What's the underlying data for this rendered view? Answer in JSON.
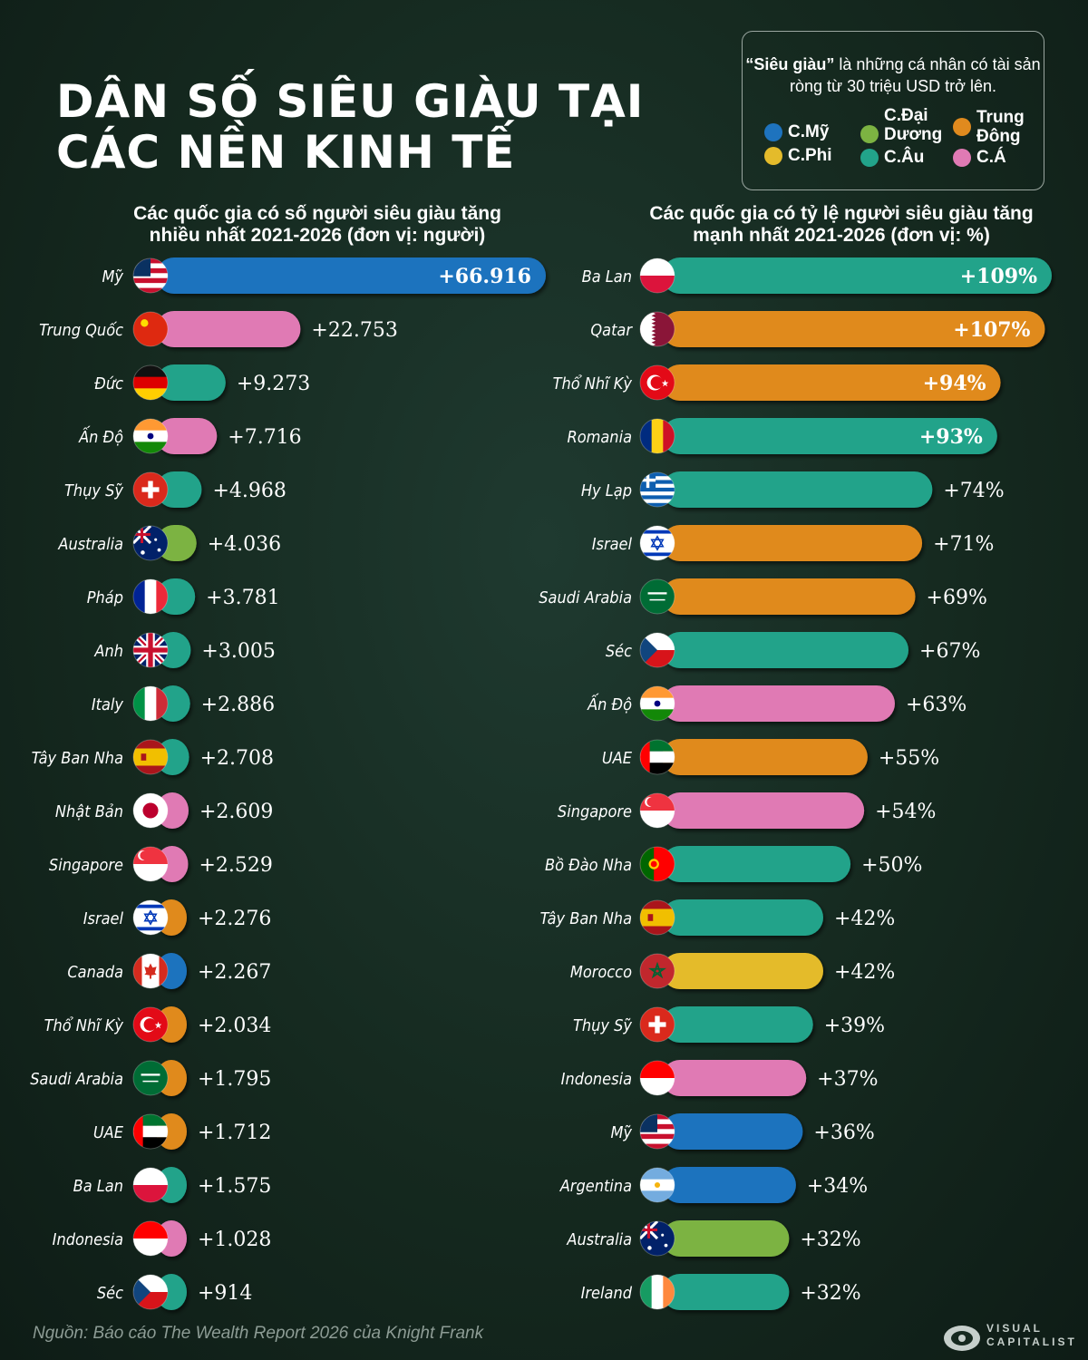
{
  "title": "DÂN SỐ SIÊU GIÀU TẠI\nCÁC NỀN KINH TẾ",
  "legend": {
    "note_bold": "“Siêu giàu”",
    "note_text": " là những cá nhân có tài sản ròng từ 30 triệu USD trở lên.",
    "items": [
      {
        "label": "C.Mỹ",
        "color": "#1e73be"
      },
      {
        "label": "C.Đại\nDương",
        "color": "#7cb342"
      },
      {
        "label": "Trung\nĐông",
        "color": "#e08a1e"
      },
      {
        "label": "C.Phi",
        "color": "#e4bb2b"
      },
      {
        "label": "C.Âu",
        "color": "#22a38a"
      },
      {
        "label": "C.Á",
        "color": "#e07ab4"
      }
    ]
  },
  "source": "Nguồn: Báo cáo The Wealth Report 2026 của Knight Frank",
  "brand": {
    "line1": "VISUAL",
    "line2": "CAPITALIST"
  },
  "chart_data": [
    {
      "type": "bar",
      "orientation": "horizontal",
      "title": "Các quốc gia có số người siêu giàu tăng nhiều nhất 2021-2026 (đơn vị: người)",
      "categories": [
        "Mỹ",
        "Trung Quốc",
        "Đức",
        "Ấn Độ",
        "Thụy Sỹ",
        "Australia",
        "Pháp",
        "Anh",
        "Italy",
        "Tây Ban Nha",
        "Nhật Bản",
        "Singapore",
        "Israel",
        "Canada",
        "Thổ Nhĩ Kỳ",
        "Saudi Arabia",
        "UAE",
        "Ba Lan",
        "Indonesia",
        "Séc"
      ],
      "values": [
        66916,
        22753,
        9273,
        7716,
        4968,
        4036,
        3781,
        3005,
        2886,
        2708,
        2609,
        2529,
        2276,
        2267,
        2034,
        1795,
        1712,
        1575,
        1028,
        914
      ],
      "labels": [
        "+66.916",
        "+22.753",
        "+9.273",
        "+7.716",
        "+4.968",
        "+4.036",
        "+3.781",
        "+3.005",
        "+2.886",
        "+2.708",
        "+2.609",
        "+2.529",
        "+2.276",
        "+2.267",
        "+2.034",
        "+1.795",
        "+1.712",
        "+1.575",
        "+1.028",
        "+914"
      ],
      "regions": [
        "am",
        "as",
        "eu",
        "as",
        "eu",
        "oc",
        "eu",
        "eu",
        "eu",
        "eu",
        "as",
        "as",
        "me",
        "am",
        "me",
        "me",
        "me",
        "eu",
        "as",
        "eu"
      ],
      "flags": [
        "us-flag",
        "cn-flag",
        "de-flag",
        "in-flag",
        "ch-flag",
        "au-flag",
        "fr-flag",
        "gb-flag",
        "it-flag",
        "es-flag",
        "jp-flag",
        "sg-flag",
        "il-flag",
        "ca-flag",
        "tr-flag",
        "sa-flag",
        "ae-flag",
        "pl-flag",
        "id-flag",
        "cz-flag"
      ],
      "xlim": [
        0,
        66916
      ]
    },
    {
      "type": "bar",
      "orientation": "horizontal",
      "title": "Các quốc gia có tỷ lệ người siêu giàu tăng mạnh nhất 2021-2026 (đơn vị: %)",
      "categories": [
        "Ba Lan",
        "Qatar",
        "Thổ Nhĩ Kỳ",
        "Romania",
        "Hy Lạp",
        "Israel",
        "Saudi Arabia",
        "Séc",
        "Ấn Độ",
        "UAE",
        "Singapore",
        "Bồ Đào Nha",
        "Tây Ban Nha",
        "Morocco",
        "Thụy Sỹ",
        "Indonesia",
        "Mỹ",
        "Argentina",
        "Australia",
        "Ireland"
      ],
      "values": [
        109,
        107,
        94,
        93,
        74,
        71,
        69,
        67,
        63,
        55,
        54,
        50,
        42,
        42,
        39,
        37,
        36,
        34,
        32,
        32
      ],
      "labels": [
        "+109%",
        "+107%",
        "+94%",
        "+93%",
        "+74%",
        "+71%",
        "+69%",
        "+67%",
        "+63%",
        "+55%",
        "+54%",
        "+50%",
        "+42%",
        "+42%",
        "+39%",
        "+37%",
        "+36%",
        "+34%",
        "+32%",
        "+32%"
      ],
      "regions": [
        "eu",
        "me",
        "me",
        "eu",
        "eu",
        "me",
        "me",
        "eu",
        "as",
        "me",
        "as",
        "eu",
        "eu",
        "af",
        "eu",
        "as",
        "am",
        "am",
        "oc",
        "eu"
      ],
      "flags": [
        "pl-flag",
        "qa-flag",
        "tr-flag",
        "ro-flag",
        "gr-flag",
        "il-flag",
        "sa-flag",
        "cz-flag",
        "in-flag",
        "ae-flag",
        "sg-flag",
        "pt-flag",
        "es-flag",
        "ma-flag",
        "ch-flag",
        "id-flag",
        "us-flag",
        "ar-flag",
        "au-flag",
        "ie-flag"
      ],
      "xlim": [
        0,
        109
      ]
    }
  ],
  "region_colors": {
    "am": "#1e73be",
    "oc": "#7cb342",
    "me": "#e08a1e",
    "af": "#e4bb2b",
    "eu": "#22a38a",
    "as": "#e07ab4"
  }
}
